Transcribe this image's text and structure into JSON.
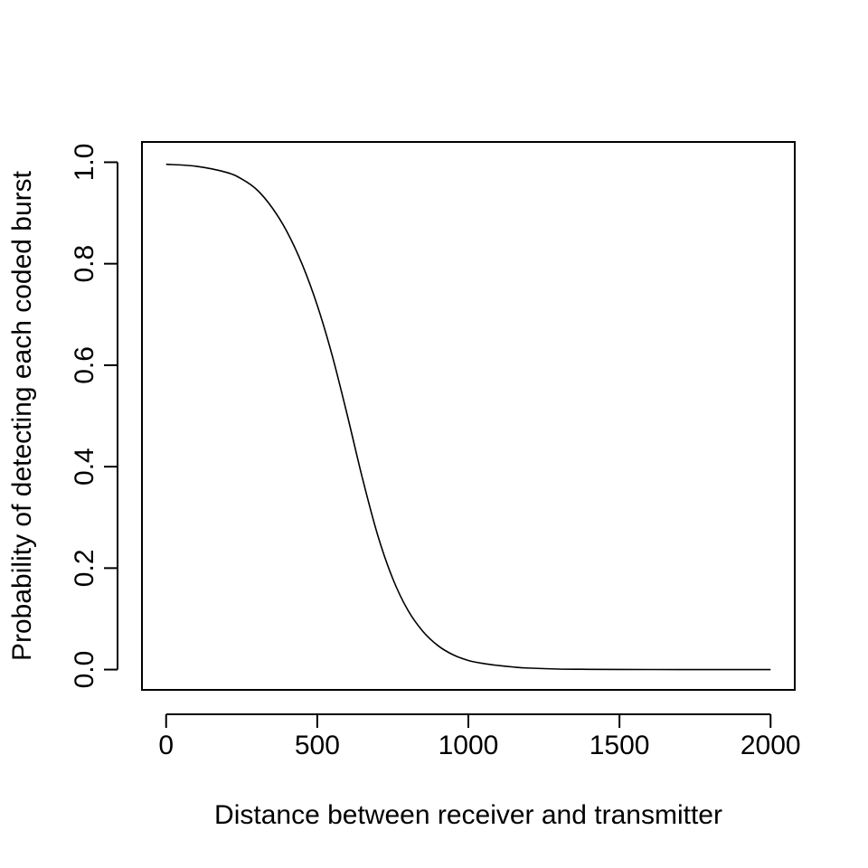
{
  "chart_data": {
    "type": "line",
    "title": "",
    "xlabel": "Distance between receiver and transmitter",
    "ylabel": "Probability of detecting each coded burst",
    "xlim": [
      -80,
      2080
    ],
    "ylim": [
      -0.04,
      1.04
    ],
    "xticks": [
      0,
      500,
      1000,
      1500,
      2000
    ],
    "xtick_labels": [
      "0",
      "500",
      "1000",
      "1500",
      "2000"
    ],
    "yticks": [
      0.0,
      0.2,
      0.4,
      0.6,
      0.8,
      1.0
    ],
    "ytick_labels": [
      "0.0",
      "0.2",
      "0.4",
      "0.6",
      "0.8",
      "1.0"
    ],
    "grid": false,
    "legend": "none",
    "line_color": "#000000",
    "series": [
      {
        "x": [
          0,
          100,
          200,
          250,
          300,
          350,
          400,
          450,
          500,
          550,
          600,
          650,
          700,
          750,
          800,
          850,
          900,
          950,
          1000,
          1050,
          1100,
          1150,
          1200,
          1300,
          1400,
          1500,
          1600,
          1700,
          1800,
          1900,
          2000
        ],
        "values": [
          0.996,
          0.992,
          0.98,
          0.967,
          0.946,
          0.911,
          0.863,
          0.799,
          0.718,
          0.618,
          0.5,
          0.376,
          0.265,
          0.179,
          0.117,
          0.075,
          0.047,
          0.029,
          0.018,
          0.012,
          0.008,
          0.005,
          0.003,
          0.001,
          0.0005,
          0.0002,
          0.0001,
          0.0,
          0.0,
          0.0,
          0.0
        ]
      }
    ]
  }
}
